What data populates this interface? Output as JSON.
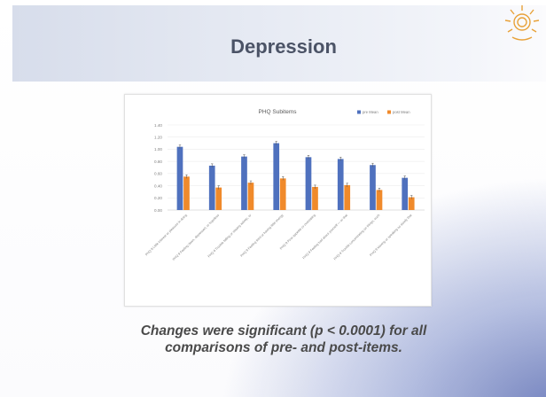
{
  "slide": {
    "title": "Depression",
    "note_line1": "Changes were significant (p < 0.0001) for all",
    "note_line2": "comparisons of pre- and post-items."
  },
  "colors": {
    "pre": "#4f71be",
    "post": "#f08a2b",
    "title_band": "#dde2ee",
    "logo": "#e8a23a"
  },
  "chart_data": {
    "type": "bar",
    "title": "PHQ Subitems",
    "categories": [
      "PHQ 9 Little interest or pleasure in doing",
      "PHQ 9 Feeling down, depressed, or hopeless",
      "PHQ 9 Trouble falling or staying asleep, or",
      "PHQ 9 Feeling tired or having little energy",
      "PHQ 9 Poor appetite or overeating",
      "PHQ 9 Feeling bad about yourself — or that",
      "PHQ 9 Trouble concentrating on things, such",
      "PHQ 9 Moving or speaking so slowly that"
    ],
    "series": [
      {
        "name": "pre Mean",
        "values": [
          1.04,
          0.73,
          0.88,
          1.1,
          0.87,
          0.84,
          0.74,
          0.53
        ]
      },
      {
        "name": "post Mean",
        "values": [
          0.55,
          0.37,
          0.45,
          0.52,
          0.38,
          0.41,
          0.33,
          0.21
        ]
      }
    ],
    "yticks": [
      "0.00",
      "0.20",
      "0.40",
      "0.60",
      "0.80",
      "1.00",
      "1.20",
      "1.40"
    ],
    "ylim": [
      0,
      1.4
    ],
    "error_bars": true,
    "legend_position": "top-right"
  }
}
